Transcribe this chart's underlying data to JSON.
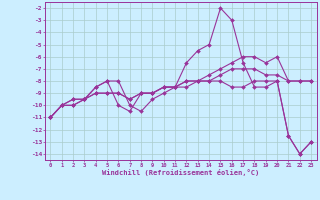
{
  "title": "",
  "xlabel": "Windchill (Refroidissement éolien,°C)",
  "ylabel": "",
  "bg_color": "#cceeff",
  "grid_color": "#aacccc",
  "line_color": "#993399",
  "xlim": [
    -0.5,
    23.5
  ],
  "ylim": [
    -14.5,
    -1.5
  ],
  "yticks": [
    -2,
    -3,
    -4,
    -5,
    -6,
    -7,
    -8,
    -9,
    -10,
    -11,
    -12,
    -13,
    -14
  ],
  "xticks": [
    0,
    1,
    2,
    3,
    4,
    5,
    6,
    7,
    8,
    9,
    10,
    11,
    12,
    13,
    14,
    15,
    16,
    17,
    18,
    19,
    20,
    21,
    22,
    23
  ],
  "series": [
    {
      "x": [
        0,
        1,
        2,
        3,
        4,
        5,
        6,
        7,
        8,
        9,
        10,
        11,
        12,
        13,
        14,
        15,
        16,
        17,
        18,
        19,
        20,
        21,
        22,
        23
      ],
      "y": [
        -11,
        -10,
        -10,
        -9.5,
        -8.5,
        -8,
        -10,
        -10.5,
        -9,
        -9,
        -8.5,
        -8.5,
        -8,
        -8,
        -8,
        -8,
        -8.5,
        -8.5,
        -8,
        -8,
        -8,
        -12.5,
        -14,
        -13
      ]
    },
    {
      "x": [
        0,
        1,
        2,
        3,
        4,
        5,
        6,
        7,
        8,
        9,
        10,
        11,
        12,
        13,
        14,
        15,
        16,
        17,
        18,
        19,
        20,
        21,
        22,
        23
      ],
      "y": [
        -11,
        -10,
        -10,
        -9.5,
        -8.5,
        -8,
        -8,
        -10,
        -10.5,
        -9.5,
        -9,
        -8.5,
        -6.5,
        -5.5,
        -5,
        -2,
        -3,
        -6.5,
        -8.5,
        -8.5,
        -8,
        -12.5,
        -14,
        -13
      ]
    },
    {
      "x": [
        0,
        1,
        2,
        3,
        4,
        5,
        6,
        7,
        8,
        9,
        10,
        11,
        12,
        13,
        14,
        15,
        16,
        17,
        18,
        19,
        20,
        21,
        22,
        23
      ],
      "y": [
        -11,
        -10,
        -9.5,
        -9.5,
        -9,
        -9,
        -9,
        -9.5,
        -9,
        -9,
        -8.5,
        -8.5,
        -8.5,
        -8,
        -8,
        -7.5,
        -7,
        -7,
        -7,
        -7.5,
        -7.5,
        -8,
        -8,
        -8
      ]
    },
    {
      "x": [
        0,
        1,
        2,
        3,
        4,
        5,
        6,
        7,
        8,
        9,
        10,
        11,
        12,
        13,
        14,
        15,
        16,
        17,
        18,
        19,
        20,
        21,
        22,
        23
      ],
      "y": [
        -11,
        -10,
        -9.5,
        -9.5,
        -9,
        -9,
        -9,
        -9.5,
        -9,
        -9,
        -8.5,
        -8.5,
        -8,
        -8,
        -7.5,
        -7,
        -6.5,
        -6,
        -6,
        -6.5,
        -6,
        -8,
        -8,
        -8
      ]
    }
  ]
}
